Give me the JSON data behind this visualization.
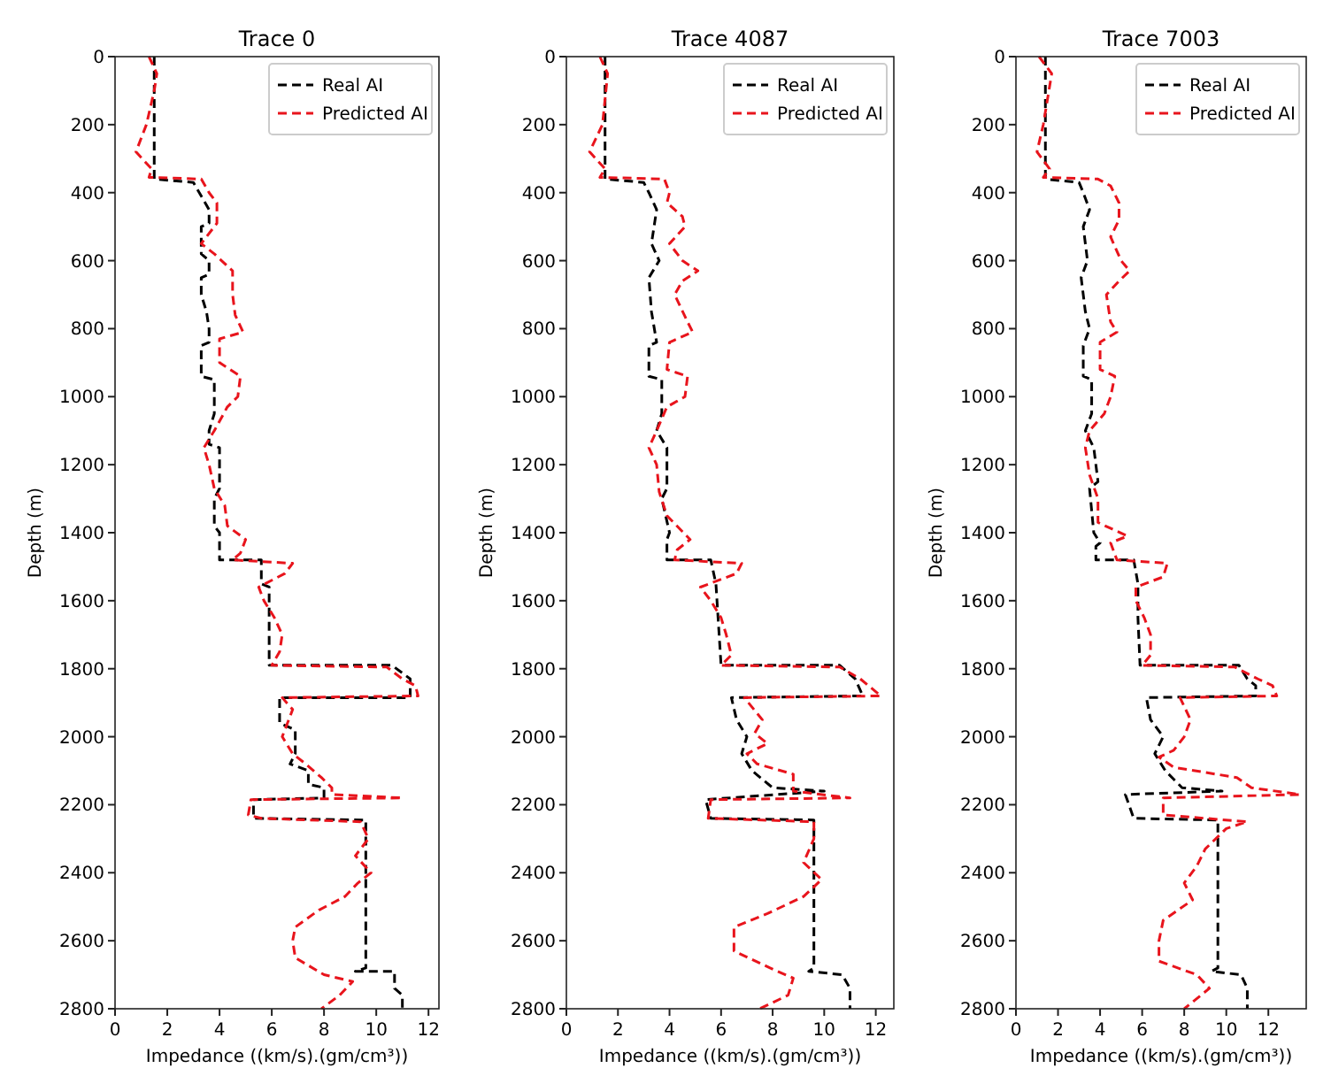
{
  "chart_data": [
    {
      "type": "line",
      "title": "Trace 0",
      "xlabel": "Impedance ((km/s).(gm/cm³))",
      "ylabel": "Depth (m)",
      "xlim": [
        0,
        12.4
      ],
      "xticks": [
        0,
        2,
        4,
        6,
        8,
        10,
        12
      ],
      "ylim": [
        2800,
        0
      ],
      "yticks": [
        0,
        200,
        400,
        600,
        800,
        1000,
        1200,
        1400,
        1600,
        1800,
        2000,
        2200,
        2400,
        2600,
        2800
      ],
      "legend": "top right",
      "line_style": "dashed",
      "series": [
        {
          "name": "Real AI",
          "color": "#000000",
          "x": [
            1.5,
            1.5,
            3.0,
            3.6,
            3.6,
            3.3,
            3.3,
            3.6,
            3.6,
            3.3,
            3.3,
            3.5,
            3.6,
            3.6,
            3.3,
            3.3,
            3.8,
            3.8,
            3.6,
            3.6,
            4.0,
            4.0,
            3.8,
            3.8,
            4.0,
            4.0,
            5.6,
            5.6,
            5.9,
            5.9,
            10.6,
            11.3,
            11.3,
            6.3,
            6.3,
            6.9,
            6.9,
            6.7,
            7.4,
            7.4,
            8.0,
            8.0,
            5.3,
            5.3,
            9.6,
            9.6,
            9.2,
            10.7,
            10.7,
            11.0,
            11.0
          ],
          "values": [
            0,
            360,
            370,
            450,
            490,
            500,
            580,
            600,
            640,
            650,
            700,
            750,
            800,
            840,
            850,
            940,
            950,
            1050,
            1100,
            1140,
            1150,
            1270,
            1300,
            1380,
            1400,
            1480,
            1480,
            1550,
            1560,
            1790,
            1790,
            1830,
            1885,
            1885,
            1960,
            1980,
            2050,
            2080,
            2100,
            2140,
            2150,
            2180,
            2185,
            2240,
            2245,
            2680,
            2690,
            2690,
            2740,
            2760,
            2800
          ]
        },
        {
          "name": "Predicted AI",
          "color": "#e8141c",
          "x": [
            1.3,
            1.6,
            1.5,
            1.2,
            0.8,
            1.4,
            1.3,
            3.3,
            3.6,
            3.9,
            3.9,
            3.3,
            3.8,
            4.5,
            4.5,
            4.6,
            4.9,
            4.0,
            4.0,
            4.8,
            4.7,
            4.3,
            3.8,
            3.4,
            3.6,
            3.8,
            4.2,
            4.3,
            5.0,
            4.8,
            4.5,
            6.8,
            6.5,
            5.5,
            5.7,
            6.1,
            6.4,
            6.3,
            6.0,
            10.4,
            11.0,
            11.5,
            11.6,
            6.4,
            6.8,
            6.6,
            6.4,
            6.8,
            7.3,
            7.9,
            8.3,
            8.3,
            11.0,
            5.2,
            5.1,
            5.6,
            9.4,
            9.7,
            9.2,
            9.8,
            9.3,
            8.8,
            7.8,
            6.9,
            6.8,
            6.9,
            8.0,
            9.1,
            8.6,
            7.9
          ],
          "values": [
            0,
            50,
            100,
            200,
            280,
            330,
            355,
            360,
            400,
            430,
            490,
            550,
            580,
            630,
            700,
            760,
            810,
            830,
            900,
            940,
            1000,
            1030,
            1100,
            1150,
            1200,
            1270,
            1320,
            1380,
            1420,
            1460,
            1480,
            1490,
            1520,
            1560,
            1600,
            1650,
            1700,
            1750,
            1790,
            1795,
            1830,
            1850,
            1880,
            1885,
            1920,
            1960,
            2000,
            2050,
            2080,
            2120,
            2150,
            2170,
            2180,
            2185,
            2230,
            2240,
            2250,
            2300,
            2350,
            2400,
            2430,
            2470,
            2510,
            2560,
            2600,
            2650,
            2700,
            2720,
            2760,
            2800
          ]
        }
      ]
    },
    {
      "type": "line",
      "title": "Trace 4087",
      "xlabel": "Impedance ((km/s).(gm/cm³))",
      "ylabel": "Depth (m)",
      "xlim": [
        0,
        12.7
      ],
      "xticks": [
        0,
        2,
        4,
        6,
        8,
        10,
        12
      ],
      "ylim": [
        2800,
        0
      ],
      "yticks": [
        0,
        200,
        400,
        600,
        800,
        1000,
        1200,
        1400,
        1600,
        1800,
        2000,
        2200,
        2400,
        2600,
        2800
      ],
      "legend": "top right",
      "line_style": "dashed",
      "series": [
        {
          "name": "Real AI",
          "color": "#000000",
          "x": [
            1.5,
            1.5,
            3.0,
            3.2,
            3.5,
            3.4,
            3.3,
            3.6,
            3.2,
            3.3,
            3.5,
            3.2,
            3.2,
            3.7,
            3.7,
            3.5,
            3.9,
            3.9,
            3.7,
            4.0,
            3.9,
            3.9,
            5.6,
            5.8,
            6.0,
            10.6,
            11.2,
            11.5,
            6.4,
            6.6,
            7.0,
            6.8,
            7.2,
            8.0,
            10.0,
            5.4,
            5.6,
            9.6,
            9.6,
            9.4,
            10.7,
            11.0,
            11.0
          ],
          "values": [
            0,
            360,
            370,
            400,
            450,
            500,
            550,
            600,
            650,
            750,
            840,
            850,
            940,
            950,
            1050,
            1100,
            1150,
            1270,
            1300,
            1400,
            1420,
            1480,
            1480,
            1550,
            1790,
            1790,
            1830,
            1880,
            1885,
            1950,
            2000,
            2050,
            2100,
            2150,
            2160,
            2185,
            2240,
            2245,
            2680,
            2690,
            2700,
            2740,
            2800
          ]
        },
        {
          "name": "Predicted AI",
          "color": "#e8141c",
          "x": [
            1.3,
            1.6,
            1.4,
            0.9,
            1.5,
            1.3,
            3.8,
            4.0,
            3.9,
            4.5,
            4.6,
            4.0,
            4.5,
            5.1,
            4.5,
            4.2,
            4.7,
            4.9,
            4.0,
            3.9,
            4.7,
            4.6,
            3.9,
            3.5,
            3.2,
            3.5,
            3.6,
            3.9,
            4.8,
            4.3,
            4.2,
            6.8,
            6.6,
            5.2,
            5.6,
            6.0,
            6.2,
            6.4,
            6.0,
            10.6,
            11.4,
            12.2,
            6.9,
            7.6,
            7.3,
            7.8,
            7.0,
            7.4,
            8.8,
            8.8,
            11.0,
            5.6,
            5.5,
            9.6,
            9.6,
            9.2,
            9.9,
            9.2,
            7.8,
            6.5,
            6.5,
            7.9,
            8.8,
            8.6,
            7.5
          ],
          "values": [
            0,
            50,
            200,
            280,
            330,
            355,
            360,
            400,
            430,
            470,
            500,
            550,
            600,
            630,
            660,
            700,
            780,
            810,
            840,
            920,
            940,
            1000,
            1030,
            1100,
            1150,
            1200,
            1280,
            1350,
            1420,
            1450,
            1480,
            1490,
            1520,
            1560,
            1600,
            1650,
            1700,
            1760,
            1790,
            1795,
            1830,
            1880,
            1885,
            1950,
            1990,
            2020,
            2050,
            2080,
            2110,
            2160,
            2180,
            2185,
            2240,
            2250,
            2300,
            2370,
            2420,
            2470,
            2520,
            2560,
            2630,
            2680,
            2710,
            2760,
            2800
          ]
        }
      ]
    },
    {
      "type": "line",
      "title": "Trace 7003",
      "xlabel": "Impedance ((km/s).(gm/cm³))",
      "ylabel": "Depth (m)",
      "xlim": [
        0,
        13.8
      ],
      "xticks": [
        0,
        2,
        4,
        6,
        8,
        10,
        12
      ],
      "ylim": [
        2800,
        0
      ],
      "yticks": [
        0,
        200,
        400,
        600,
        800,
        1000,
        1200,
        1400,
        1600,
        1800,
        2000,
        2200,
        2400,
        2600,
        2800
      ],
      "legend": "top right",
      "line_style": "dashed",
      "series": [
        {
          "name": "Real AI",
          "color": "#000000",
          "x": [
            1.4,
            1.4,
            3.0,
            3.2,
            3.5,
            3.2,
            3.4,
            3.1,
            3.3,
            3.5,
            3.2,
            3.2,
            3.6,
            3.6,
            3.3,
            3.7,
            3.9,
            3.5,
            3.7,
            4.0,
            3.8,
            3.8,
            5.6,
            5.8,
            5.8,
            5.9,
            10.6,
            11.0,
            11.4,
            11.4,
            6.2,
            6.4,
            7.0,
            6.6,
            7.1,
            7.9,
            9.8,
            5.2,
            5.6,
            9.6,
            9.6,
            9.3,
            10.7,
            11.0,
            11.0
          ],
          "values": [
            0,
            360,
            370,
            400,
            450,
            500,
            600,
            650,
            750,
            800,
            850,
            940,
            950,
            1050,
            1100,
            1150,
            1250,
            1270,
            1400,
            1430,
            1440,
            1480,
            1480,
            1550,
            1650,
            1790,
            1790,
            1830,
            1850,
            1880,
            1885,
            1950,
            2000,
            2050,
            2100,
            2150,
            2160,
            2170,
            2240,
            2245,
            2680,
            2690,
            2700,
            2740,
            2800
          ]
        },
        {
          "name": "Predicted AI",
          "color": "#e8141c",
          "x": [
            1.1,
            1.7,
            1.3,
            1.0,
            1.6,
            1.3,
            3.9,
            4.5,
            4.9,
            4.9,
            4.5,
            5.0,
            5.4,
            4.9,
            4.3,
            4.5,
            4.8,
            4.0,
            4.0,
            4.7,
            4.5,
            4.2,
            3.5,
            3.3,
            3.5,
            3.9,
            3.9,
            5.3,
            4.5,
            4.8,
            7.2,
            7.0,
            5.7,
            5.7,
            6.1,
            6.4,
            6.4,
            6.0,
            10.4,
            11.5,
            12.2,
            12.4,
            7.8,
            8.3,
            8.0,
            7.5,
            6.8,
            7.5,
            10.5,
            11.2,
            13.5,
            7.0,
            7.0,
            11.0,
            10.0,
            9.0,
            8.6,
            8.0,
            8.4,
            7.0,
            6.8,
            6.8,
            8.6,
            9.2,
            8.0
          ],
          "values": [
            0,
            50,
            200,
            280,
            330,
            355,
            360,
            380,
            430,
            480,
            530,
            600,
            630,
            660,
            700,
            780,
            810,
            840,
            920,
            940,
            1000,
            1050,
            1100,
            1150,
            1230,
            1300,
            1370,
            1410,
            1430,
            1480,
            1490,
            1530,
            1560,
            1600,
            1650,
            1700,
            1760,
            1790,
            1795,
            1830,
            1850,
            1880,
            1885,
            1950,
            2000,
            2040,
            2060,
            2090,
            2120,
            2150,
            2170,
            2180,
            2230,
            2250,
            2270,
            2330,
            2380,
            2430,
            2480,
            2540,
            2600,
            2660,
            2700,
            2740,
            2800
          ]
        }
      ]
    }
  ]
}
